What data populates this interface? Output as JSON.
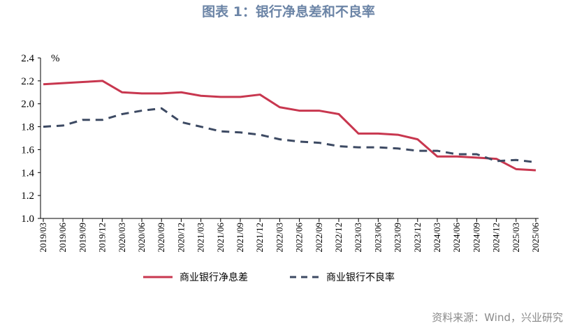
{
  "title": "图表 1：银行净息差和不良率",
  "source": "资料来源：Wind，兴业研究",
  "chart_data": {
    "type": "line",
    "title": "图表 1：银行净息差和不良率",
    "ylabel": "%",
    "xlabel": "",
    "ylim": [
      1.0,
      2.4
    ],
    "yticks": [
      "1.0",
      "1.2",
      "1.4",
      "1.6",
      "1.8",
      "2.0",
      "2.2",
      "2.4"
    ],
    "grid": false,
    "legend_position": "bottom",
    "categories": [
      "2019/03",
      "2019/06",
      "2019/09",
      "2019/12",
      "2020/03",
      "2020/06",
      "2020/09",
      "2020/12",
      "2021/03",
      "2021/06",
      "2021/09",
      "2021/12",
      "2022/03",
      "2022/06",
      "2022/09",
      "2022/12",
      "2023/03",
      "2023/06",
      "2023/09",
      "2023/12",
      "2024/03",
      "2024/06",
      "2024/09",
      "2024/12",
      "2025/03",
      "2025/06"
    ],
    "series": [
      {
        "name": "商业银行净息差",
        "color": "#c8374f",
        "style": "solid",
        "values": [
          2.17,
          2.18,
          2.19,
          2.2,
          2.1,
          2.09,
          2.09,
          2.1,
          2.07,
          2.06,
          2.06,
          2.08,
          1.97,
          1.94,
          1.94,
          1.91,
          1.74,
          1.74,
          1.73,
          1.69,
          1.54,
          1.54,
          1.53,
          1.52,
          1.43,
          1.42
        ]
      },
      {
        "name": "商业银行不良率",
        "color": "#3d4a63",
        "style": "dashed",
        "values": [
          1.8,
          1.81,
          1.86,
          1.86,
          1.91,
          1.94,
          1.96,
          1.84,
          1.8,
          1.76,
          1.75,
          1.73,
          1.69,
          1.67,
          1.66,
          1.63,
          1.62,
          1.62,
          1.61,
          1.59,
          1.59,
          1.56,
          1.56,
          1.5,
          1.51,
          1.49
        ]
      }
    ]
  }
}
